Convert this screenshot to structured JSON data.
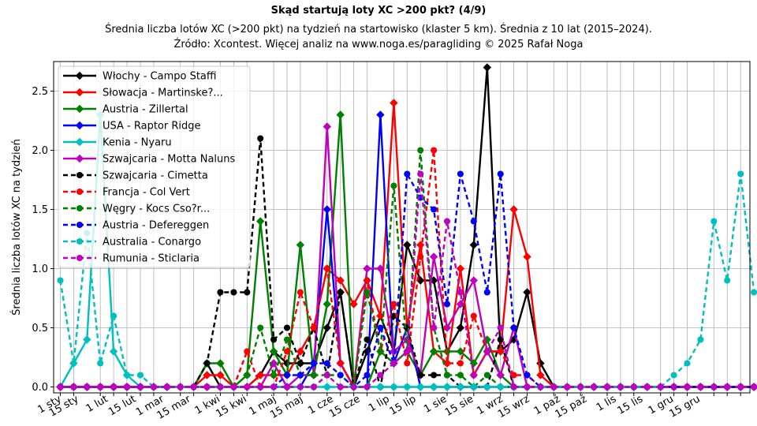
{
  "chart_data": {
    "type": "line",
    "title": "Skąd startują loty XC >200 pkt? (4/9)",
    "subtitle_line1": "Średnia liczba lotów XC (>200 pkt) na tydzień na startowisko (klaster 5 km). Średnia z 10 lat (2015–2024).",
    "subtitle_line2": "Źródło: Xcontest. Więcej analiz na www.noga.es/paragliding © 2025 Rafał Noga",
    "xlabel": "",
    "ylabel": "Średnia liczba lotów XC na tydzień",
    "x_unit": "week",
    "xlim": [
      0.5,
      52.7
    ],
    "ylim": [
      -0.05,
      2.75
    ],
    "grid": true,
    "legend_position": "top-left",
    "yticks": [
      0.0,
      0.5,
      1.0,
      1.5,
      2.0,
      2.5
    ],
    "ytick_labels": [
      "0.0",
      "0.5",
      "1.0",
      "1.5",
      "2.0",
      "2.5"
    ],
    "xticks": [
      1,
      2,
      4,
      5,
      6,
      7,
      8,
      10,
      11,
      13,
      14,
      15,
      17,
      18,
      19,
      21,
      22,
      23,
      24,
      26,
      27,
      28,
      30,
      31,
      32,
      34,
      35,
      36,
      38,
      39,
      40,
      42,
      43,
      44,
      46,
      47,
      48,
      50,
      51,
      52
    ],
    "xtick_labels": [
      "1 sty",
      "15 sty",
      "1 lut",
      "15 lut",
      "1 mar",
      "15 mar",
      "1 kwi",
      "15 kwi",
      "1 maj",
      "15 maj",
      "1 cze",
      "15 cze",
      "1 lip",
      "15 lip",
      "1 sie",
      "15 sie",
      "1 wrz",
      "15 wrz",
      "1 paź",
      "15 paź",
      "1 lis",
      "15 lis",
      "1 gru",
      "15 gru"
    ],
    "xtick_label_positions": [
      1,
      2.3,
      4.5,
      6.6,
      8.7,
      10.7,
      12.9,
      14.9,
      17.1,
      19.1,
      21.4,
      23.4,
      25.6,
      27.6,
      29.9,
      31.9,
      34.1,
      36.1,
      38.4,
      40.4,
      42.6,
      44.6,
      46.9,
      48.9
    ],
    "series": [
      {
        "name": "Włochy - Campo Staffi",
        "color": "#000000",
        "style": "solid",
        "marker": "diamond",
        "values": [
          0,
          0,
          0,
          0,
          0,
          0,
          0,
          0,
          0,
          0,
          0,
          0.2,
          0,
          0,
          0,
          0.1,
          0.3,
          0.2,
          0.2,
          0.2,
          0.5,
          0.8,
          0,
          0.3,
          0.6,
          0.3,
          1.2,
          0.9,
          0.9,
          0.3,
          0.5,
          1.2,
          2.7,
          0.3,
          0.4,
          0.8,
          0.2,
          0,
          0,
          0,
          0,
          0,
          0,
          0,
          0,
          0,
          0,
          0,
          0,
          0,
          0,
          0,
          0
        ]
      },
      {
        "name": "Słowacja - Martinske?...",
        "color": "#ff0000",
        "style": "solid",
        "marker": "diamond",
        "values": [
          0,
          0,
          0,
          0,
          0,
          0,
          0,
          0,
          0,
          0,
          0,
          0.1,
          0.1,
          0,
          0,
          0.1,
          0.1,
          0.1,
          0.3,
          0.5,
          1.0,
          0.9,
          0.7,
          0.9,
          0.6,
          2.4,
          0.5,
          1.2,
          0.3,
          0.2,
          1.0,
          0.1,
          0.3,
          0.3,
          1.5,
          1.1,
          0.1,
          0,
          0,
          0,
          0,
          0,
          0,
          0,
          0,
          0,
          0,
          0,
          0,
          0,
          0,
          0,
          0
        ]
      },
      {
        "name": "Austria - Zillertal",
        "color": "#008000",
        "style": "solid",
        "marker": "diamond",
        "values": [
          0,
          0,
          0,
          0,
          0,
          0,
          0,
          0,
          0,
          0,
          0,
          0.2,
          0.2,
          0,
          0.1,
          1.4,
          0.3,
          0.1,
          1.2,
          0.1,
          0.7,
          2.3,
          0,
          0,
          0.3,
          0.2,
          0.3,
          0.1,
          0.3,
          0.3,
          0.3,
          0.2,
          0.4,
          0.1,
          0,
          0,
          0,
          0,
          0,
          0,
          0,
          0,
          0,
          0,
          0,
          0,
          0,
          0,
          0,
          0,
          0,
          0,
          0
        ]
      },
      {
        "name": "USA - Raptor Ridge",
        "color": "#0000ff",
        "style": "solid",
        "marker": "diamond",
        "values": [
          0,
          0,
          0,
          0,
          0,
          0,
          0,
          0,
          0,
          0,
          0,
          0,
          0,
          0,
          0,
          0,
          0,
          0,
          0,
          0.2,
          1.5,
          0.2,
          0,
          0,
          2.3,
          0.2,
          0.5,
          0,
          0,
          0,
          0,
          0,
          0,
          0,
          0,
          0,
          0,
          0,
          0,
          0,
          0,
          0,
          0,
          0,
          0,
          0,
          0,
          0,
          0,
          0,
          0,
          0,
          0
        ]
      },
      {
        "name": "Kenia - Nyaru",
        "color": "#00bfbf",
        "style": "solid",
        "marker": "diamond",
        "values": [
          0,
          0.2,
          0.4,
          2.3,
          0.3,
          0.1,
          0,
          0,
          0,
          0,
          0,
          0,
          0,
          0,
          0,
          0,
          0,
          0,
          0,
          0,
          0,
          0,
          0,
          0,
          0,
          0,
          0,
          0,
          0,
          0,
          0,
          0,
          0,
          0,
          0,
          0,
          0,
          0,
          0,
          0,
          0,
          0,
          0,
          0,
          0,
          0,
          0,
          0,
          0,
          0,
          0,
          0,
          0
        ]
      },
      {
        "name": "Szwajcaria - Motta Naluns",
        "color": "#bf00bf",
        "style": "solid",
        "marker": "diamond",
        "values": [
          0,
          0,
          0,
          0,
          0,
          0,
          0,
          0,
          0,
          0,
          0,
          0,
          0,
          0,
          0,
          0,
          0.2,
          0,
          0.1,
          0.1,
          2.2,
          0.2,
          0,
          1.0,
          1.0,
          0.3,
          0.4,
          0.1,
          1.1,
          0.5,
          0.7,
          0.9,
          0.3,
          0.1,
          0.5,
          0,
          0,
          0,
          0,
          0,
          0,
          0,
          0,
          0,
          0,
          0,
          0,
          0,
          0,
          0,
          0,
          0,
          0
        ]
      },
      {
        "name": "Szwajcaria - Cimetta",
        "color": "#000000",
        "style": "dashed",
        "marker": "circle",
        "values": [
          0,
          0,
          0,
          0,
          0,
          0,
          0,
          0,
          0,
          0,
          0,
          0.2,
          0.8,
          0.8,
          0.8,
          2.1,
          0.4,
          0.5,
          0.2,
          0.5,
          0.1,
          0.8,
          0,
          0.4,
          0,
          0.6,
          0.5,
          0.1,
          0.1,
          0.1,
          0,
          0,
          0,
          0.4,
          0,
          0,
          0,
          0,
          0,
          0,
          0,
          0,
          0,
          0,
          0,
          0,
          0,
          0,
          0,
          0,
          0,
          0,
          0
        ]
      },
      {
        "name": "Francja - Col Vert",
        "color": "#ff0000",
        "style": "dashed",
        "marker": "circle",
        "values": [
          0,
          0,
          0,
          0,
          0,
          0,
          0,
          0,
          0,
          0,
          0,
          0,
          0,
          0,
          0.3,
          0,
          0,
          0.3,
          0.8,
          0.5,
          1.0,
          0.2,
          0,
          0.9,
          0.3,
          0.7,
          0.2,
          1.1,
          2.0,
          0.2,
          0.2,
          0.6,
          0.3,
          0.3,
          0.1,
          0.1,
          0,
          0,
          0,
          0,
          0,
          0,
          0,
          0,
          0,
          0,
          0,
          0,
          0,
          0,
          0,
          0,
          0
        ]
      },
      {
        "name": "Węgry - Kocs Cso?r...",
        "color": "#008000",
        "style": "dashed",
        "marker": "circle",
        "values": [
          0,
          0,
          0,
          0,
          0,
          0,
          0,
          0,
          0,
          0,
          0,
          0,
          0,
          0,
          0.1,
          0.5,
          0.1,
          0.4,
          0.1,
          0.1,
          0.1,
          0.1,
          0,
          0.8,
          0.3,
          1.7,
          0.3,
          2.0,
          0.5,
          0.1,
          0.1,
          0,
          0.1,
          0,
          0,
          0,
          0,
          0,
          0,
          0,
          0,
          0,
          0,
          0,
          0,
          0,
          0,
          0,
          0,
          0,
          0,
          0,
          0
        ]
      },
      {
        "name": "Austria - Defereggen",
        "color": "#0000ff",
        "style": "dashed",
        "marker": "circle",
        "values": [
          0,
          0,
          0,
          0,
          0,
          0,
          0,
          0,
          0,
          0,
          0,
          0,
          0,
          0,
          0,
          0,
          0,
          0.1,
          0.1,
          0.2,
          0.2,
          0.1,
          0,
          0.1,
          0.5,
          0.2,
          1.8,
          1.6,
          1.5,
          0.7,
          1.8,
          1.4,
          0.8,
          1.8,
          0.5,
          0.1,
          0,
          0,
          0,
          0,
          0,
          0,
          0,
          0,
          0,
          0,
          0,
          0,
          0,
          0,
          0,
          0,
          0
        ]
      },
      {
        "name": "Australia - Conargo",
        "color": "#00bfbf",
        "style": "dashed",
        "marker": "circle",
        "values": [
          0.9,
          0.2,
          1.3,
          0.2,
          0.6,
          0.1,
          0.1,
          0,
          0,
          0,
          0,
          0,
          0,
          0,
          0,
          0,
          0,
          0,
          0,
          0,
          0,
          0,
          0,
          0,
          0,
          0,
          0,
          0,
          0,
          0,
          0,
          0,
          0,
          0,
          0,
          0,
          0,
          0,
          0,
          0,
          0,
          0,
          0,
          0,
          0,
          0,
          0.1,
          0.2,
          0.4,
          1.4,
          0.9,
          1.8,
          0.8
        ]
      },
      {
        "name": "Rumunia - Sticlaria",
        "color": "#bf00bf",
        "style": "dashed",
        "marker": "circle",
        "values": [
          0,
          0,
          0,
          0,
          0,
          0,
          0,
          0,
          0,
          0,
          0,
          0,
          0,
          0,
          0,
          0,
          0,
          0,
          0,
          0,
          0.1,
          0,
          0,
          0,
          0.1,
          0.2,
          0.3,
          1.8,
          0.5,
          1.4,
          0.8,
          0.1,
          0.3,
          0.5,
          0,
          0,
          0,
          0,
          0,
          0,
          0,
          0,
          0,
          0,
          0,
          0,
          0,
          0,
          0,
          0,
          0,
          0,
          0
        ]
      }
    ]
  }
}
